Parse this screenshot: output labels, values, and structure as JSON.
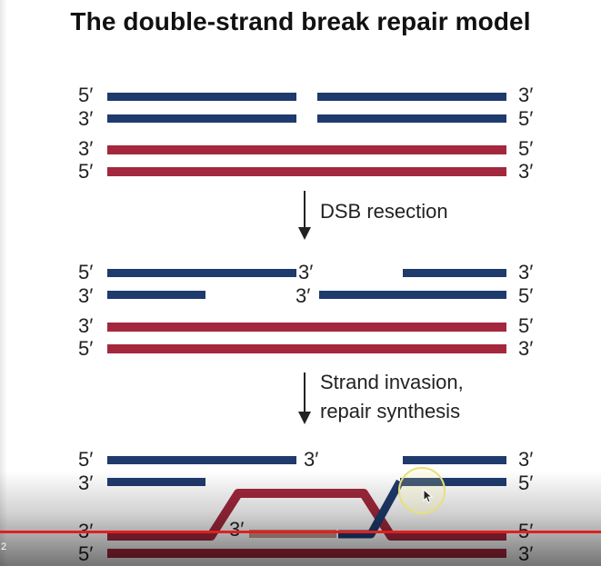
{
  "title": "The double-strand break repair model",
  "labels": {
    "five_prime": "5′",
    "three_prime": "3′"
  },
  "steps": {
    "step1": "DSB resection",
    "step2_line1": "Strand invasion,",
    "step2_line2": "repair synthesis"
  },
  "player": {
    "time": "2",
    "progress_fraction": 1.0
  },
  "colors": {
    "blue_strand": "#1f3a6d",
    "red_strand": "#a3283d",
    "new_synthesis": "#c89a8a",
    "progress": "#e02020"
  }
}
